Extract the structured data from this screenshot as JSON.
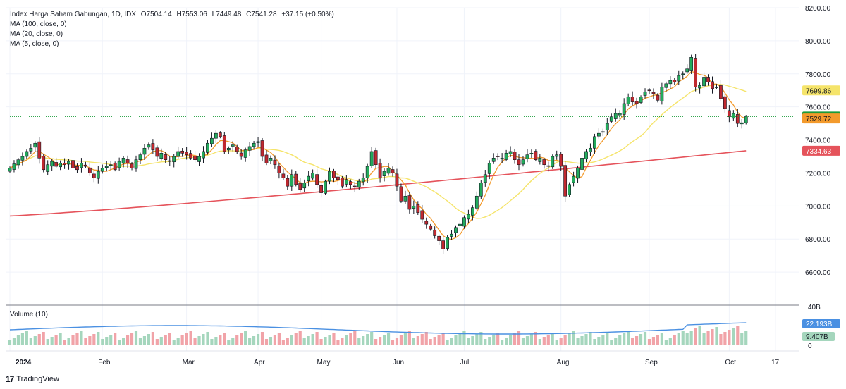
{
  "header": {
    "symbol": "Index Harga Saham Gabungan, 1D, IDX",
    "open": "O7504.14",
    "high": "H7553.06",
    "low": "L7449.48",
    "close": "C7541.28",
    "change": "+37.15 (+0.50%)"
  },
  "indicators": [
    {
      "label": "MA (100, close, 0)",
      "color": "#e5535b",
      "last": "7334.63"
    },
    {
      "label": "MA (20, close, 0)",
      "color": "#f5e46a",
      "last": "7699.86"
    },
    {
      "label": "MA (5, close, 0)",
      "color": "#f39a2c",
      "last": "7529.72"
    }
  ],
  "volume": {
    "label": "Volume (10)",
    "ma_last": "22.193B",
    "last": "9.407B",
    "scale_top": "40B",
    "scale_zero": "0",
    "ma_color": "#4a90e2"
  },
  "last_price": {
    "label": "7541.28",
    "color": "#1b9b3a"
  },
  "footer": {
    "brand": "TradingView",
    "logo": "17"
  },
  "colors": {
    "up": "#22ab5c",
    "down": "#c0282f",
    "vol_up": "#a5d6bd",
    "vol_down": "#f1a3a8"
  },
  "chart_data": {
    "type": "candlestick",
    "ylim": [
      6400,
      8200
    ],
    "y_ticks": [
      6600,
      6800,
      7000,
      7200,
      7400,
      7600,
      7800,
      8000,
      8200
    ],
    "y_tick_labels": [
      "6600.00",
      "6800.00",
      "7000.00",
      "7200.00",
      "7400.00",
      "7600.00",
      "7800.00",
      "8000.00",
      "8200.00"
    ],
    "x_labels": [
      {
        "label": "2024",
        "index": 0,
        "bold": true
      },
      {
        "label": "Feb",
        "index": 22
      },
      {
        "label": "Mar",
        "index": 42
      },
      {
        "label": "Apr",
        "index": 59
      },
      {
        "label": "May",
        "index": 74
      },
      {
        "label": "Jun",
        "index": 92
      },
      {
        "label": "Jul",
        "index": 108
      },
      {
        "label": "Aug",
        "index": 131
      },
      {
        "label": "Sep",
        "index": 152
      },
      {
        "label": "Oct",
        "index": 171
      },
      {
        "label": "17",
        "index": 182
      }
    ],
    "closes": [
      7230,
      7255,
      7280,
      7300,
      7330,
      7350,
      7380,
      7290,
      7220,
      7250,
      7270,
      7240,
      7260,
      7250,
      7270,
      7230,
      7220,
      7260,
      7240,
      7200,
      7170,
      7210,
      7230,
      7240,
      7250,
      7220,
      7270,
      7290,
      7260,
      7230,
      7280,
      7310,
      7350,
      7370,
      7340,
      7300,
      7320,
      7280,
      7270,
      7300,
      7330,
      7320,
      7310,
      7290,
      7280,
      7300,
      7330,
      7380,
      7410,
      7440,
      7420,
      7330,
      7350,
      7370,
      7330,
      7300,
      7340,
      7360,
      7380,
      7390,
      7300,
      7260,
      7290,
      7250,
      7200,
      7170,
      7120,
      7190,
      7130,
      7100,
      7140,
      7180,
      7200,
      7130,
      7080,
      7150,
      7210,
      7170,
      7160,
      7120,
      7160,
      7130,
      7120,
      7150,
      7170,
      7240,
      7330,
      7250,
      7170,
      7210,
      7230,
      7200,
      7120,
      7030,
      7060,
      6980,
      7000,
      6960,
      6920,
      6890,
      6860,
      6820,
      6790,
      6740,
      6810,
      6830,
      6870,
      6890,
      6930,
      6950,
      6990,
      7060,
      7140,
      7190,
      7260,
      7290,
      7300,
      7290,
      7320,
      7330,
      7280,
      7250,
      7280,
      7310,
      7320,
      7280,
      7290,
      7250,
      7240,
      7300,
      7310,
      7240,
      7060,
      7130,
      7180,
      7230,
      7290,
      7330,
      7350,
      7420,
      7440,
      7450,
      7500,
      7540,
      7560,
      7560,
      7620,
      7660,
      7630,
      7620,
      7660,
      7690,
      7700,
      7680,
      7640,
      7720,
      7740,
      7760,
      7750,
      7790,
      7800,
      7830,
      7900,
      7720,
      7730,
      7780,
      7750,
      7710,
      7720,
      7650,
      7590,
      7540,
      7560,
      7500,
      7504,
      7541
    ],
    "ma100_range": [
      6940,
      7334.63
    ],
    "ma20_last": 7699.86,
    "ma5_last": 7529.72,
    "last_close": 7541.28
  }
}
